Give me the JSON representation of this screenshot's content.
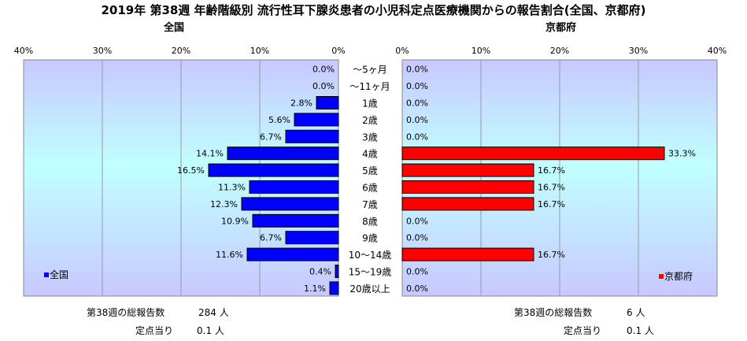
{
  "title": "2019年 第38週 年齢階級別 流行性耳下腺炎患者の小児科定点医療機関からの報告割合(全国、京都府)",
  "chart_data": {
    "type": "bar",
    "orientation": "horizontal",
    "categories": [
      "～5ヶ月",
      "～11ヶ月",
      "1歳",
      "2歳",
      "3歳",
      "4歳",
      "5歳",
      "6歳",
      "7歳",
      "8歳",
      "9歳",
      "10～14歳",
      "15～19歳",
      "20歳以上"
    ],
    "panels": [
      {
        "title": "全国",
        "series_name": "全国",
        "color": "#0000ff",
        "direction": "left",
        "values": [
          0.0,
          0.0,
          2.8,
          5.6,
          6.7,
          14.1,
          16.5,
          11.3,
          12.3,
          10.9,
          6.7,
          11.6,
          0.4,
          1.1
        ],
        "value_labels": [
          "0.0%",
          "0.0%",
          "2.8%",
          "5.6%",
          "6.7%",
          "14.1%",
          "16.5%",
          "11.3%",
          "12.3%",
          "10.9%",
          "6.7%",
          "11.6%",
          "0.4%",
          "1.1%"
        ],
        "ticks": [
          "40%",
          "30%",
          "20%",
          "10%",
          "0%"
        ],
        "xlim": [
          0,
          40
        ],
        "legend_position": "bottom-left",
        "total_label": "第38週の総報告数",
        "total_value": "284 人",
        "per_site_label": "定点当り",
        "per_site_value": "0.1 人"
      },
      {
        "title": "京都府",
        "series_name": "京都府",
        "color": "#ff0000",
        "direction": "right",
        "values": [
          0.0,
          0.0,
          0.0,
          0.0,
          0.0,
          33.3,
          16.7,
          16.7,
          16.7,
          0.0,
          0.0,
          16.7,
          0.0,
          0.0
        ],
        "value_labels": [
          "0.0%",
          "0.0%",
          "0.0%",
          "0.0%",
          "0.0%",
          "33.3%",
          "16.7%",
          "16.7%",
          "16.7%",
          "0.0%",
          "0.0%",
          "16.7%",
          "0.0%",
          "0.0%"
        ],
        "ticks": [
          "0%",
          "10%",
          "20%",
          "30%",
          "40%"
        ],
        "xlim": [
          0,
          40
        ],
        "legend_position": "bottom-right",
        "total_label": "第38週の総報告数",
        "total_value": "6 人",
        "per_site_label": "定点当り",
        "per_site_value": "0.1 人"
      }
    ],
    "grid": true
  }
}
